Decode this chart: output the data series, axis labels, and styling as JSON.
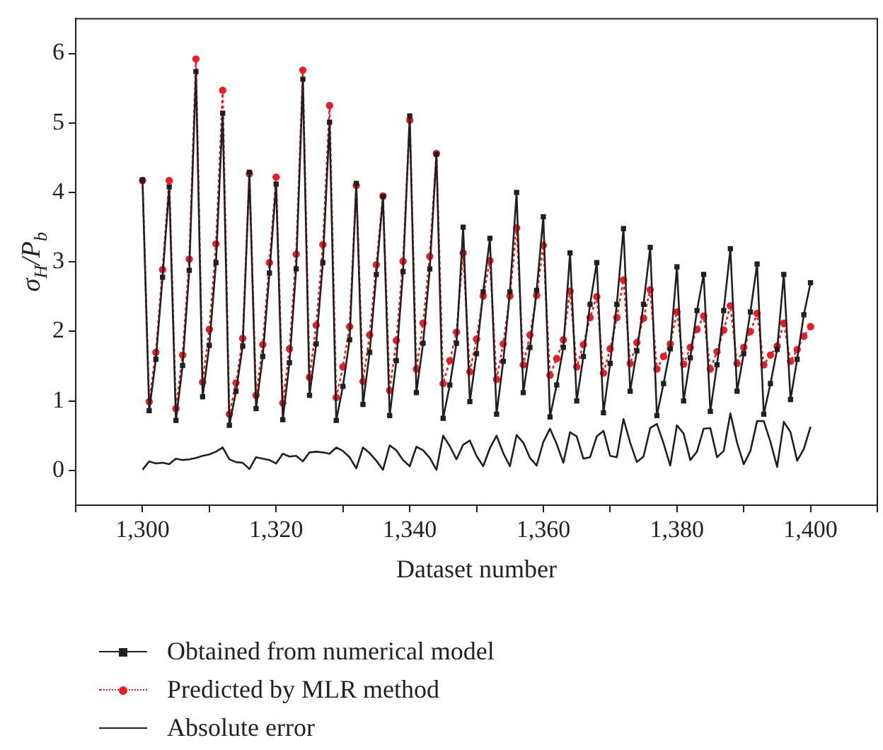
{
  "chart_data": {
    "type": "line",
    "xlabel": "Dataset number",
    "ylabel": "σ$_{H}$/P$_{b}$",
    "x": [
      1300,
      1301,
      1302,
      1303,
      1304,
      1305,
      1306,
      1307,
      1308,
      1309,
      1310,
      1311,
      1312,
      1313,
      1314,
      1315,
      1316,
      1317,
      1318,
      1319,
      1320,
      1321,
      1322,
      1323,
      1324,
      1325,
      1326,
      1327,
      1328,
      1329,
      1330,
      1331,
      1332,
      1333,
      1334,
      1335,
      1336,
      1337,
      1338,
      1339,
      1340,
      1341,
      1342,
      1343,
      1344,
      1345,
      1346,
      1347,
      1348,
      1349,
      1350,
      1351,
      1352,
      1353,
      1354,
      1355,
      1356,
      1357,
      1358,
      1359,
      1360,
      1361,
      1362,
      1363,
      1364,
      1365,
      1366,
      1367,
      1368,
      1369,
      1370,
      1371,
      1372,
      1373,
      1374,
      1375,
      1376,
      1377,
      1378,
      1379,
      1380,
      1381,
      1382,
      1383,
      1384,
      1385,
      1386,
      1387,
      1388,
      1389,
      1390,
      1391,
      1392,
      1393,
      1394,
      1395,
      1396,
      1397,
      1398,
      1399,
      1400
    ],
    "series": [
      {
        "name": "Obtained from numerical model",
        "color": "#231f20",
        "marker": "square",
        "line_style": "solid",
        "values": [
          4.18,
          0.86,
          1.6,
          2.78,
          4.08,
          0.72,
          1.51,
          2.88,
          5.74,
          1.06,
          1.8,
          2.99,
          5.14,
          0.65,
          1.14,
          1.79,
          4.29,
          0.89,
          1.64,
          2.84,
          4.12,
          0.73,
          1.55,
          2.9,
          5.63,
          1.08,
          1.82,
          2.99,
          5.01,
          0.72,
          1.21,
          1.88,
          4.13,
          0.95,
          1.7,
          2.82,
          3.94,
          0.79,
          1.58,
          2.86,
          5.1,
          1.12,
          1.83,
          2.9,
          4.55,
          0.75,
          1.23,
          1.83,
          3.5,
          0.99,
          1.68,
          2.57,
          3.34,
          0.81,
          1.57,
          2.57,
          4.0,
          1.12,
          1.77,
          2.59,
          3.65,
          0.77,
          1.23,
          1.77,
          3.13,
          1.0,
          1.64,
          2.39,
          2.99,
          0.83,
          1.54,
          2.39,
          3.48,
          1.14,
          1.72,
          2.39,
          3.21,
          0.79,
          1.25,
          1.75,
          2.93,
          1.0,
          1.62,
          2.3,
          2.82,
          0.85,
          1.52,
          2.3,
          3.19,
          1.14,
          1.68,
          2.28,
          2.97,
          0.81,
          1.25,
          1.74,
          2.82,
          1.02,
          1.6,
          2.24,
          2.7
        ]
      },
      {
        "name": "Predicted by MLR method",
        "color": "#ed1c24",
        "marker": "circle",
        "line_style": "dotted",
        "values": [
          4.17,
          0.99,
          1.7,
          2.89,
          4.17,
          0.89,
          1.66,
          3.04,
          5.92,
          1.27,
          2.03,
          3.26,
          5.47,
          0.81,
          1.26,
          1.9,
          4.27,
          1.08,
          1.81,
          2.99,
          4.22,
          0.97,
          1.75,
          3.11,
          5.76,
          1.34,
          2.09,
          3.25,
          5.25,
          1.05,
          1.49,
          2.07,
          4.1,
          1.28,
          1.95,
          2.96,
          3.95,
          1.15,
          1.87,
          3.01,
          5.04,
          1.46,
          2.12,
          3.08,
          4.56,
          1.25,
          1.58,
          1.99,
          3.13,
          1.42,
          1.89,
          2.51,
          3.02,
          1.31,
          1.82,
          2.51,
          3.49,
          1.52,
          1.95,
          2.52,
          3.24,
          1.37,
          1.61,
          1.88,
          2.58,
          1.49,
          1.81,
          2.2,
          2.5,
          1.4,
          1.75,
          2.2,
          2.74,
          1.54,
          1.84,
          2.19,
          2.6,
          1.46,
          1.64,
          1.82,
          2.28,
          1.53,
          1.77,
          2.03,
          2.22,
          1.46,
          1.71,
          2.02,
          2.37,
          1.54,
          1.77,
          2.0,
          2.26,
          1.52,
          1.66,
          1.79,
          2.12,
          1.57,
          1.74,
          1.93,
          2.07
        ]
      },
      {
        "name": "Absolute error",
        "color": "#231f20",
        "marker": "none",
        "line_style": "solid",
        "values": [
          0.01,
          0.13,
          0.1,
          0.11,
          0.09,
          0.17,
          0.15,
          0.16,
          0.18,
          0.21,
          0.23,
          0.27,
          0.33,
          0.16,
          0.12,
          0.11,
          0.02,
          0.19,
          0.17,
          0.15,
          0.1,
          0.24,
          0.2,
          0.21,
          0.13,
          0.26,
          0.27,
          0.26,
          0.24,
          0.33,
          0.28,
          0.19,
          0.03,
          0.33,
          0.25,
          0.14,
          0.01,
          0.36,
          0.29,
          0.15,
          0.06,
          0.34,
          0.29,
          0.18,
          0.01,
          0.5,
          0.35,
          0.16,
          0.37,
          0.43,
          0.21,
          0.06,
          0.32,
          0.5,
          0.25,
          0.06,
          0.51,
          0.4,
          0.18,
          0.07,
          0.41,
          0.6,
          0.38,
          0.11,
          0.55,
          0.49,
          0.17,
          0.19,
          0.49,
          0.57,
          0.21,
          0.19,
          0.74,
          0.4,
          0.12,
          0.2,
          0.61,
          0.67,
          0.39,
          0.07,
          0.65,
          0.53,
          0.15,
          0.27,
          0.6,
          0.61,
          0.19,
          0.28,
          0.82,
          0.4,
          0.09,
          0.28,
          0.71,
          0.71,
          0.41,
          0.05,
          0.7,
          0.55,
          0.14,
          0.31,
          0.63
        ]
      }
    ],
    "xlim": [
      1290,
      1410
    ],
    "xticks": [
      {
        "value": 1290,
        "label": null
      },
      {
        "value": 1300,
        "label": "1,300"
      },
      {
        "value": 1310,
        "label": null
      },
      {
        "value": 1320,
        "label": "1,320"
      },
      {
        "value": 1330,
        "label": null
      },
      {
        "value": 1340,
        "label": "1,340"
      },
      {
        "value": 1350,
        "label": null
      },
      {
        "value": 1360,
        "label": "1,360"
      },
      {
        "value": 1370,
        "label": null
      },
      {
        "value": 1380,
        "label": "1,380"
      },
      {
        "value": 1390,
        "label": null
      },
      {
        "value": 1400,
        "label": "1,400"
      },
      {
        "value": 1410,
        "label": null
      }
    ],
    "ylim": [
      -0.5,
      6.5
    ],
    "yticks": [
      0,
      1,
      2,
      3,
      4,
      5,
      6
    ],
    "grid": false,
    "legend": "bottom"
  }
}
